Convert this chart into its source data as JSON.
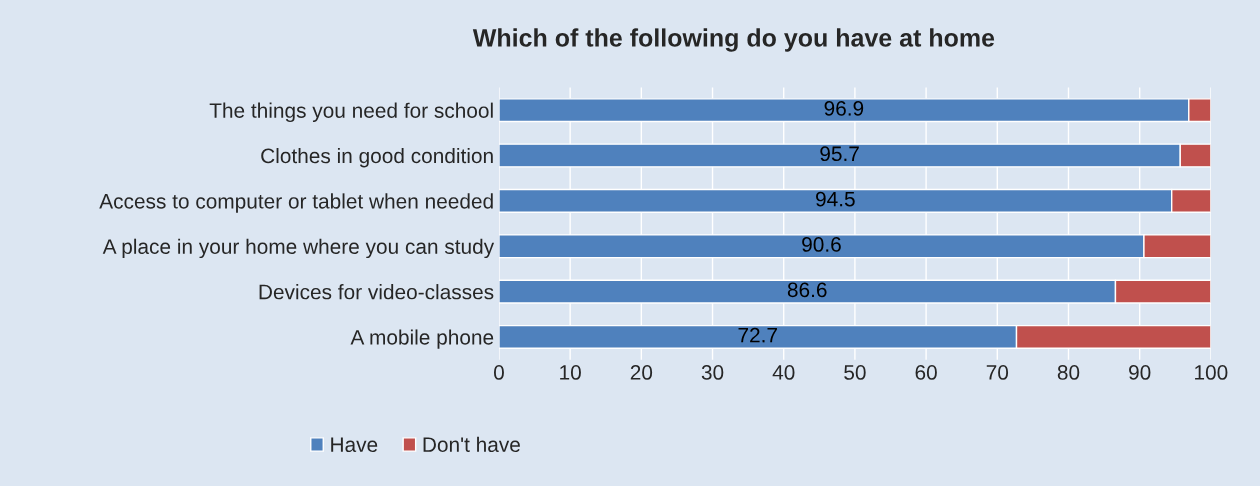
{
  "chart_data": {
    "type": "bar",
    "title": "Which of the following do you have at home",
    "orientation": "horizontal",
    "stacked": true,
    "categories": [
      "The things you need for school",
      "Clothes in good condition",
      "Access to computer or tablet when needed",
      "A place in your home where you can study",
      "Devices for video-classes",
      "A mobile phone"
    ],
    "series": [
      {
        "name": "Have",
        "color": "#4f81bd",
        "values": [
          96.9,
          95.7,
          94.5,
          90.6,
          86.6,
          72.7
        ],
        "value_labels": [
          "96.9",
          "95.7",
          "94.5",
          "90.6",
          "86.6",
          "72.7"
        ]
      },
      {
        "name": "Don't have",
        "color": "#c0504d",
        "values": [
          3.1,
          4.3,
          5.5,
          9.4,
          13.4,
          27.3
        ]
      }
    ],
    "xlim": [
      0,
      100
    ],
    "xticks": [
      0,
      10,
      20,
      30,
      40,
      50,
      60,
      70,
      80,
      90,
      100
    ],
    "grid": "x",
    "legend": "bottom"
  }
}
